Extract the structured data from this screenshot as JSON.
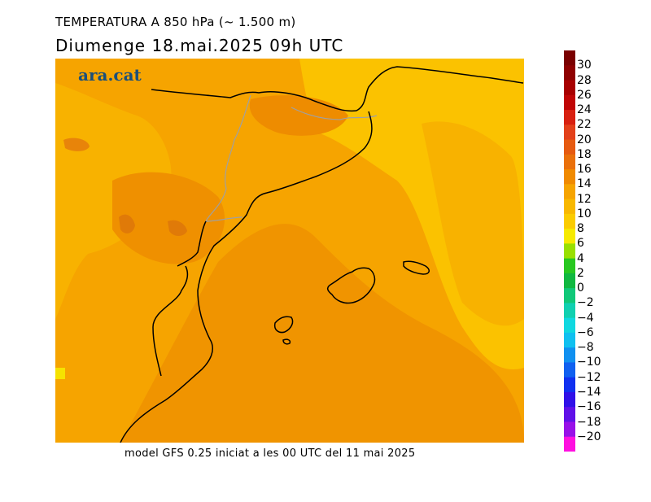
{
  "header": {
    "title": "TEMPERATURA A 850 hPa (~ 1.500 m)",
    "subtitle": "Diumenge  18.mai.2025 09h UTC"
  },
  "map": {
    "logo": "ara.cat",
    "base_color": "#f6a400",
    "coast_color": "#000000",
    "border_color": "#a0a0a0"
  },
  "footer": {
    "caption": "model GFS 0.25 iniciat a les 00 UTC del 11 mai 2025"
  },
  "legend": {
    "ticks": [
      "30",
      "28",
      "26",
      "24",
      "22",
      "20",
      "18",
      "16",
      "14",
      "12",
      "10",
      "8",
      "6",
      "4",
      "2",
      "0",
      "−2",
      "−4",
      "−6",
      "−8",
      "−10",
      "−12",
      "−14",
      "−16",
      "−18",
      "−20"
    ],
    "colors": [
      "#7a0000",
      "#8e0000",
      "#a80000",
      "#c00505",
      "#d82010",
      "#e3401a",
      "#e65a10",
      "#ea700a",
      "#f08a00",
      "#f6a400",
      "#f8b800",
      "#fbcc00",
      "#f6ea00",
      "#99e000",
      "#28c820",
      "#10b840",
      "#10c878",
      "#10d0b0",
      "#10d8e0",
      "#10c0f0",
      "#1090f0",
      "#1060f0",
      "#1030f0",
      "#3010e8",
      "#6010e8",
      "#9810e8",
      "#ff10e0"
    ]
  }
}
